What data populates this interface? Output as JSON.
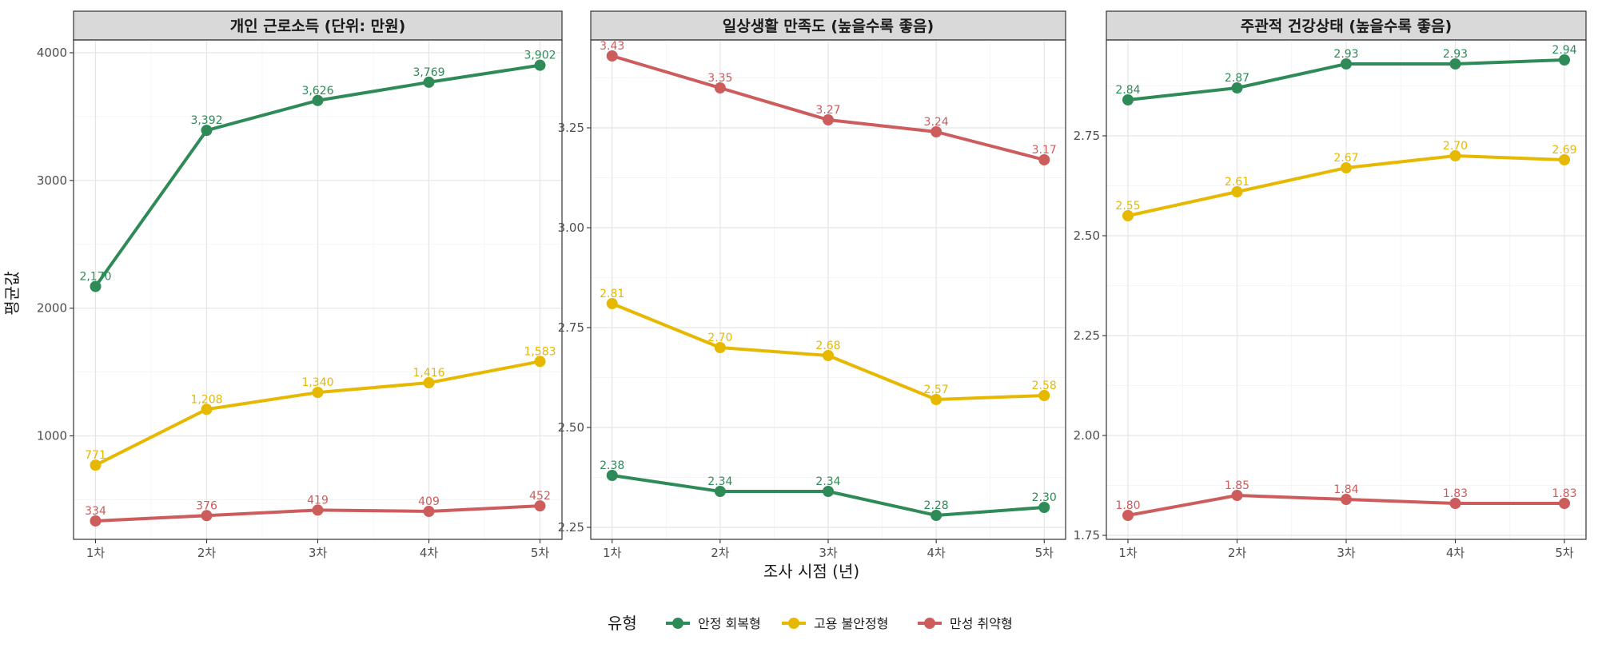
{
  "colors": {
    "series": [
      "#2e8b57",
      "#e6b800",
      "#cd5c5c"
    ]
  },
  "x_axis_title": "조사 시점 (년)",
  "y_axis_title": "평균값",
  "legend": {
    "title": "유형",
    "position": "bottom",
    "labels": [
      "안정 회복형",
      "고용 불안정형",
      "만성 취약형"
    ]
  },
  "chart_data": [
    {
      "type": "line",
      "title": "개인 근로소득 (단위: 만원)",
      "categories": [
        "1차",
        "2차",
        "3차",
        "4차",
        "5차"
      ],
      "ylim": [
        190,
        4100
      ],
      "yticks": [
        1000,
        2000,
        3000,
        4000
      ],
      "ytick_labels": [
        "1000",
        "2000",
        "3000",
        "4000"
      ],
      "grid": true,
      "series": [
        {
          "name": "안정 회복형",
          "values": [
            2170,
            3392,
            3626,
            3769,
            3902
          ],
          "labels": [
            "2,170",
            "3,392",
            "3,626",
            "3,769",
            "3,902"
          ]
        },
        {
          "name": "고용 불안정형",
          "values": [
            771,
            1208,
            1340,
            1416,
            1583
          ],
          "labels": [
            "771",
            "1,208",
            "1,340",
            "1,416",
            "1,583"
          ]
        },
        {
          "name": "만성 취약형",
          "values": [
            334,
            376,
            419,
            409,
            452
          ],
          "labels": [
            "334",
            "376",
            "419",
            "409",
            "452"
          ]
        }
      ]
    },
    {
      "type": "line",
      "title": "일상생활 만족도 (높을수록 좋음)",
      "categories": [
        "1차",
        "2차",
        "3차",
        "4차",
        "5차"
      ],
      "ylim": [
        2.22,
        3.47
      ],
      "yticks": [
        2.25,
        2.5,
        2.75,
        3.0,
        3.25
      ],
      "ytick_labels": [
        "2.25",
        "2.50",
        "2.75",
        "3.00",
        "3.25"
      ],
      "grid": true,
      "series": [
        {
          "name": "안정 회복형",
          "values": [
            2.38,
            2.34,
            2.34,
            2.28,
            2.3
          ],
          "labels": [
            "2.38",
            "2.34",
            "2.34",
            "2.28",
            "2.30"
          ]
        },
        {
          "name": "고용 불안정형",
          "values": [
            2.81,
            2.7,
            2.68,
            2.57,
            2.58
          ],
          "labels": [
            "2.81",
            "2.70",
            "2.68",
            "2.57",
            "2.58"
          ]
        },
        {
          "name": "만성 취약형",
          "values": [
            3.43,
            3.35,
            3.27,
            3.24,
            3.17
          ],
          "labels": [
            "3.43",
            "3.35",
            "3.27",
            "3.24",
            "3.17"
          ]
        }
      ]
    },
    {
      "type": "line",
      "title": "주관적 건강상태 (높을수록 좋음)",
      "categories": [
        "1차",
        "2차",
        "3차",
        "4차",
        "5차"
      ],
      "ylim": [
        1.74,
        2.99
      ],
      "yticks": [
        1.75,
        2.0,
        2.25,
        2.5,
        2.75
      ],
      "ytick_labels": [
        "1.75",
        "2.00",
        "2.25",
        "2.50",
        "2.75"
      ],
      "grid": true,
      "series": [
        {
          "name": "안정 회복형",
          "values": [
            2.84,
            2.87,
            2.93,
            2.93,
            2.94
          ],
          "labels": [
            "2.84",
            "2.87",
            "2.93",
            "2.93",
            "2.94"
          ]
        },
        {
          "name": "고용 불안정형",
          "values": [
            2.55,
            2.61,
            2.67,
            2.7,
            2.69
          ],
          "labels": [
            "2.55",
            "2.61",
            "2.67",
            "2.70",
            "2.69"
          ]
        },
        {
          "name": "만성 취약형",
          "values": [
            1.8,
            1.85,
            1.84,
            1.83,
            1.83
          ],
          "labels": [
            "1.80",
            "1.85",
            "1.84",
            "1.83",
            "1.83"
          ]
        }
      ]
    }
  ]
}
